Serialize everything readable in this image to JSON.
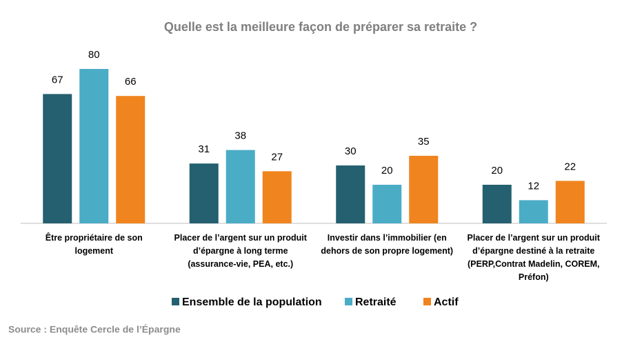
{
  "chart_data": {
    "type": "bar",
    "title": "Quelle est la meilleure façon de préparer sa retraite ?",
    "categories": [
      "Être propriétaire de son\nlogement",
      "Placer de l’argent sur un produit\nd’épargne à long terme\n(assurance-vie, PEA, etc.)",
      "Investir dans l’immobilier  (en\ndehors de son propre logement)",
      "Placer de l’argent sur un produit\nd’épargne destiné à la retraite\n(PERP,Contrat  Madelin, COREM,\nPréfon)"
    ],
    "series": [
      {
        "name": "Ensemble de la population",
        "color": "#24606f",
        "values": [
          67,
          31,
          30,
          20
        ]
      },
      {
        "name": "Retraité",
        "color": "#4bacc6",
        "values": [
          80,
          38,
          20,
          12
        ]
      },
      {
        "name": "Actif",
        "color": "#f0841e",
        "values": [
          66,
          27,
          35,
          22
        ]
      }
    ],
    "source": "Source : Enquête Cercle de l’Épargne"
  }
}
